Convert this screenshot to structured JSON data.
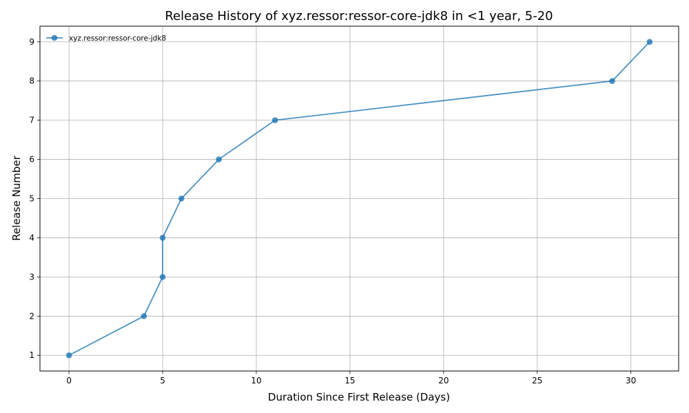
{
  "chart_data": {
    "type": "line",
    "title": "Release History of xyz.ressor:ressor-core-jdk8 in <1 year, 5-20",
    "xlabel": "Duration Since First Release (Days)",
    "ylabel": "Release Number",
    "xlim": [
      -1.55,
      32.55
    ],
    "ylim": [
      0.6,
      9.4
    ],
    "xticks": [
      0,
      5,
      10,
      15,
      20,
      25,
      30
    ],
    "yticks": [
      1,
      2,
      3,
      4,
      5,
      6,
      7,
      8,
      9
    ],
    "grid": true,
    "legend_position": "top-left",
    "series": [
      {
        "name": "xyz.ressor:ressor-core-jdk8",
        "color": "#1f77b4",
        "marker": "circle",
        "x": [
          0,
          4,
          5,
          5,
          6,
          8,
          11,
          29,
          31
        ],
        "y": [
          1,
          2,
          3,
          4,
          5,
          6,
          7,
          8,
          9
        ]
      }
    ]
  }
}
